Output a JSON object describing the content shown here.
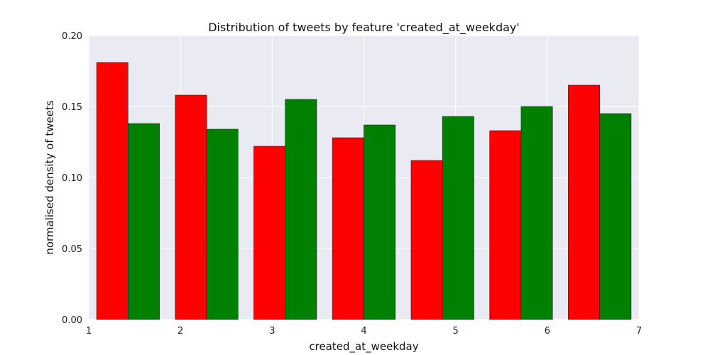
{
  "chart_data": {
    "type": "bar",
    "title": "Distribution of tweets by feature 'created_at_weekday'",
    "xlabel": "created_at_weekday",
    "ylabel": "normalised density of tweets",
    "xlim": [
      1,
      7
    ],
    "ylim": [
      0,
      0.2
    ],
    "xticks": [
      "1",
      "2",
      "3",
      "4",
      "5",
      "6",
      "7"
    ],
    "yticks": [
      "0.00",
      "0.05",
      "0.10",
      "0.15",
      "0.20"
    ],
    "grid": true,
    "background": "#eaeaf2",
    "bins": [
      [
        1.0,
        1.857
      ],
      [
        1.857,
        2.714
      ],
      [
        2.714,
        3.571
      ],
      [
        3.571,
        4.429
      ],
      [
        4.429,
        5.286
      ],
      [
        5.286,
        6.143
      ],
      [
        6.143,
        7.0
      ]
    ],
    "series": [
      {
        "color": "#ff0000",
        "values": [
          0.181,
          0.158,
          0.122,
          0.128,
          0.112,
          0.133,
          0.165
        ]
      },
      {
        "color": "#008000",
        "values": [
          0.138,
          0.134,
          0.155,
          0.137,
          0.143,
          0.15,
          0.145
        ]
      }
    ]
  }
}
